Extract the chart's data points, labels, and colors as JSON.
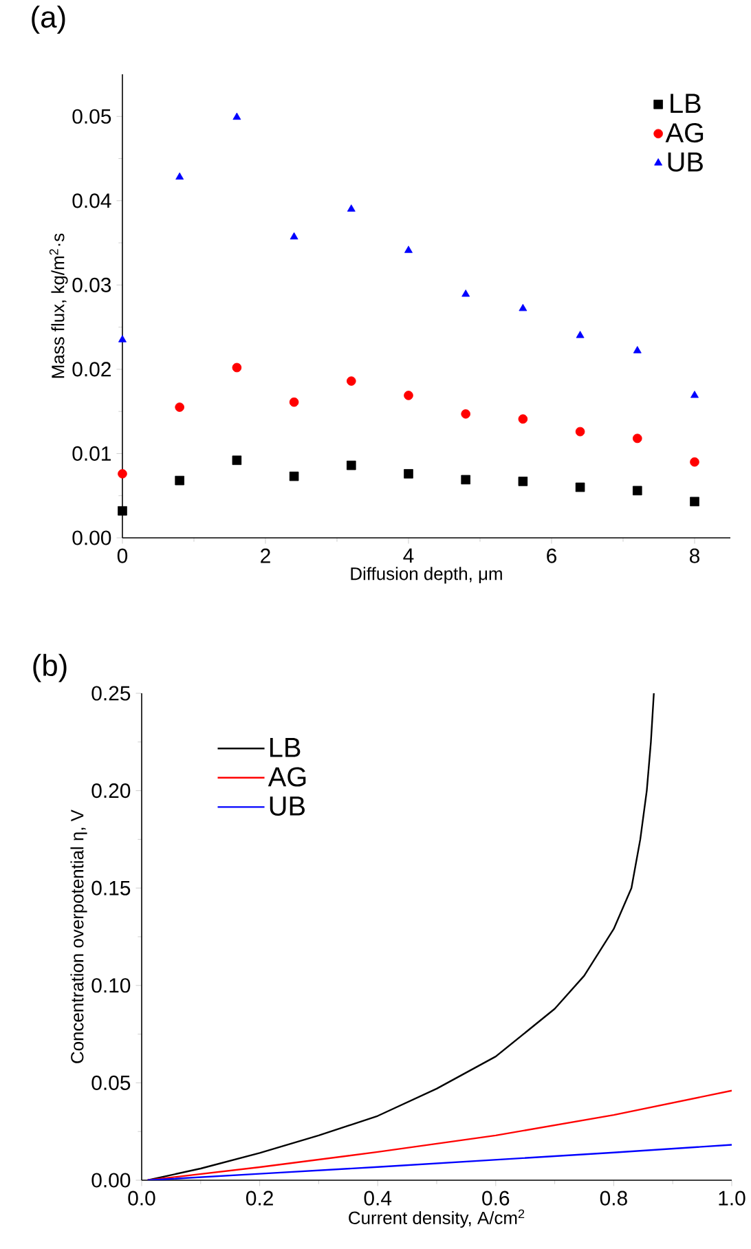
{
  "chart_data": [
    {
      "type": "scatter",
      "title": "(a)",
      "xlabel": "Diffusion depth, μm",
      "ylabel": "Mass flux, kg/m$^{2}$·s",
      "x": [
        0,
        0.8,
        1.6,
        2.4,
        3.2,
        4.0,
        4.8,
        5.6,
        6.4,
        7.2,
        8.0
      ],
      "xlim": [
        0,
        8.5
      ],
      "ylim": [
        0,
        0.055
      ],
      "xticks": [
        0,
        2,
        4,
        6,
        8
      ],
      "yticks": [
        {
          "value": 0,
          "label": "0.00"
        },
        {
          "value": 0.01,
          "label": "0.01"
        },
        {
          "value": 0.02,
          "label": "0.02"
        },
        {
          "value": 0.03,
          "label": "0.03"
        },
        {
          "value": 0.04,
          "label": "0.04"
        },
        {
          "value": 0.05,
          "label": "0.05"
        }
      ],
      "legend": "top right",
      "grid": false,
      "series": [
        {
          "name": "LB",
          "color": "#000000",
          "marker": "square",
          "values": [
            0.0032,
            0.0068,
            0.0092,
            0.0073,
            0.0086,
            0.0076,
            0.0069,
            0.0067,
            0.006,
            0.0056,
            0.0043
          ]
        },
        {
          "name": "AG",
          "color": "#ff0000",
          "marker": "circle",
          "values": [
            0.0076,
            0.0155,
            0.0202,
            0.0161,
            0.0186,
            0.0169,
            0.0147,
            0.0141,
            0.0126,
            0.0118,
            0.009
          ]
        },
        {
          "name": "UB",
          "color": "#0000ff",
          "marker": "triangle",
          "values": [
            0.0235,
            0.0428,
            0.0499,
            0.0357,
            0.039,
            0.0341,
            0.0289,
            0.0272,
            0.024,
            0.0222,
            0.0169
          ]
        }
      ]
    },
    {
      "type": "line",
      "title": "(b)",
      "xlabel": "Current density, A/cm$^{2}$",
      "ylabel": "Concentration overpotential η, V",
      "xlim": [
        0,
        1.0
      ],
      "ylim": [
        0,
        0.25
      ],
      "xticks": [
        {
          "value": 0,
          "label": "0.0"
        },
        {
          "value": 0.2,
          "label": "0.2"
        },
        {
          "value": 0.4,
          "label": "0.4"
        },
        {
          "value": 0.6,
          "label": "0.6"
        },
        {
          "value": 0.8,
          "label": "0.8"
        },
        {
          "value": 1.0,
          "label": "1.0"
        }
      ],
      "yticks": [
        {
          "value": 0,
          "label": "0.00"
        },
        {
          "value": 0.05,
          "label": "0.05"
        },
        {
          "value": 0.1,
          "label": "0.10"
        },
        {
          "value": 0.15,
          "label": "0.15"
        },
        {
          "value": 0.2,
          "label": "0.20"
        },
        {
          "value": 0.25,
          "label": "0.25"
        }
      ],
      "legend": "top left",
      "grid": false,
      "line_style": "solid",
      "series": [
        {
          "name": "LB",
          "color": "#000000",
          "x": [
            0.01,
            0.1,
            0.2,
            0.3,
            0.4,
            0.5,
            0.6,
            0.7,
            0.75,
            0.8,
            0.83,
            0.845,
            0.856,
            0.863,
            0.868
          ],
          "values": [
            0,
            0.006,
            0.014,
            0.023,
            0.033,
            0.047,
            0.0635,
            0.088,
            0.105,
            0.129,
            0.15,
            0.175,
            0.2,
            0.225,
            0.25
          ]
        },
        {
          "name": "AG",
          "color": "#ff0000",
          "x": [
            0.01,
            0.2,
            0.4,
            0.6,
            0.8,
            1.0
          ],
          "values": [
            0,
            0.0067,
            0.0145,
            0.023,
            0.0335,
            0.046
          ]
        },
        {
          "name": "UB",
          "color": "#0000ff",
          "x": [
            0.01,
            0.2,
            0.4,
            0.6,
            0.8,
            1.0
          ],
          "values": [
            0,
            0.0033,
            0.0068,
            0.0105,
            0.0142,
            0.0182
          ]
        }
      ]
    }
  ]
}
